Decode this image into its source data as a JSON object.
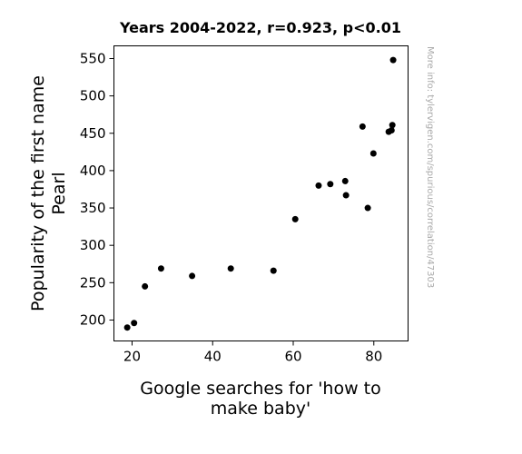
{
  "chart_data": {
    "type": "scatter",
    "title": "Years 2004-2022, r=0.923, p<0.01",
    "xlabel_lines": [
      "Google searches for 'how to",
      "make baby'"
    ],
    "ylabel_lines": [
      "Popularity of the first name",
      "Pearl"
    ],
    "xlim": [
      15.5,
      88.5
    ],
    "ylim": [
      172,
      567
    ],
    "xticks": [
      20,
      40,
      60,
      80
    ],
    "yticks": [
      200,
      250,
      300,
      350,
      400,
      450,
      500,
      550
    ],
    "grid": false,
    "marker_color": "#000000",
    "points": [
      {
        "x": 18.8,
        "y": 190
      },
      {
        "x": 20.5,
        "y": 196
      },
      {
        "x": 23.2,
        "y": 245
      },
      {
        "x": 27.2,
        "y": 269
      },
      {
        "x": 34.9,
        "y": 259
      },
      {
        "x": 44.5,
        "y": 269
      },
      {
        "x": 55.1,
        "y": 266
      },
      {
        "x": 60.5,
        "y": 335
      },
      {
        "x": 66.3,
        "y": 380
      },
      {
        "x": 69.2,
        "y": 382
      },
      {
        "x": 72.9,
        "y": 386
      },
      {
        "x": 73.1,
        "y": 367
      },
      {
        "x": 77.2,
        "y": 459
      },
      {
        "x": 78.5,
        "y": 350
      },
      {
        "x": 79.9,
        "y": 423
      },
      {
        "x": 83.7,
        "y": 452
      },
      {
        "x": 84.4,
        "y": 454
      },
      {
        "x": 84.6,
        "y": 461
      },
      {
        "x": 84.8,
        "y": 548
      }
    ]
  },
  "watermark": "More info: tylervigen.com/spurious/correlation/47303"
}
